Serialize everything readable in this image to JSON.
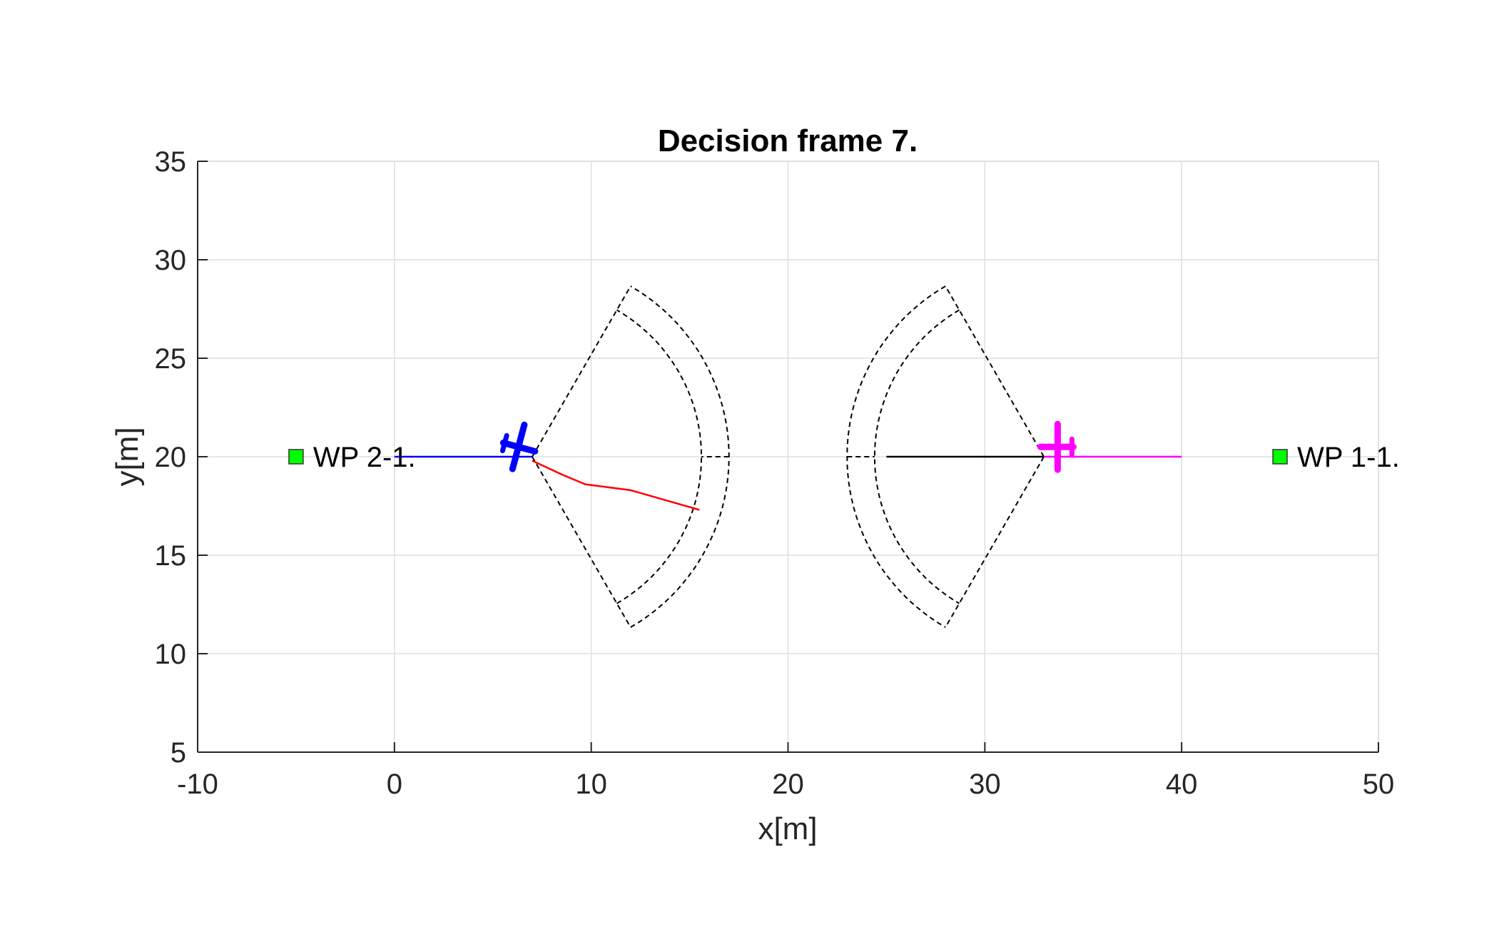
{
  "chart_data": {
    "type": "line",
    "title": "Decision frame 7.",
    "xlabel": "x[m]",
    "ylabel": "y[m]",
    "xlim": [
      -10,
      50
    ],
    "ylim": [
      5,
      35
    ],
    "xticks": [
      -10,
      0,
      10,
      20,
      30,
      40,
      50
    ],
    "yticks": [
      5,
      10,
      15,
      20,
      25,
      30,
      35
    ],
    "xtick_labels": [
      "-10",
      "0",
      "10",
      "20",
      "30",
      "40",
      "50"
    ],
    "ytick_labels": [
      "5",
      "10",
      "15",
      "20",
      "25",
      "30",
      "35"
    ],
    "grid": true,
    "colors": {
      "aircraft_1": "#ff00ff",
      "aircraft_2": "#0000ff",
      "planned_path": "#ff0000",
      "sensor_sector": "#000000",
      "waypoint": "#00ff00"
    },
    "series": [
      {
        "x": [
          0,
          7
        ],
        "y": [
          20,
          20
        ],
        "color": "#0000ff",
        "style": "solid"
      },
      {
        "x": [
          33,
          40
        ],
        "y": [
          20,
          20
        ],
        "color": "#ff00ff",
        "style": "solid"
      },
      {
        "x": [
          25,
          33
        ],
        "y": [
          20,
          20
        ],
        "color": "#000000",
        "style": "solid"
      },
      {
        "x": [
          7,
          8.5,
          9.7,
          12,
          15.5
        ],
        "y": [
          19.8,
          19.1,
          18.6,
          18.3,
          17.3
        ],
        "color": "#ff0000",
        "style": "solid"
      }
    ],
    "sensor_sectors": [
      {
        "center": [
          7,
          20
        ],
        "heading_deg": 0,
        "half_angle_deg": 60,
        "inner_radius": 8.6,
        "outer_radius": 10
      },
      {
        "center": [
          33,
          20
        ],
        "heading_deg": 180,
        "half_angle_deg": 60,
        "inner_radius": 8.6,
        "outer_radius": 10
      }
    ],
    "aircraft": [
      {
        "x": 6.3,
        "y": 20.5,
        "heading_deg": -15,
        "color": "#0000ff"
      },
      {
        "x": 33.7,
        "y": 20.5,
        "heading_deg": 180,
        "color": "#ff00ff"
      }
    ],
    "waypoints": [
      {
        "label": "WP 2-1.",
        "x": -5,
        "y": 20
      },
      {
        "label": "WP 1-1.",
        "x": 45,
        "y": 20
      }
    ]
  }
}
